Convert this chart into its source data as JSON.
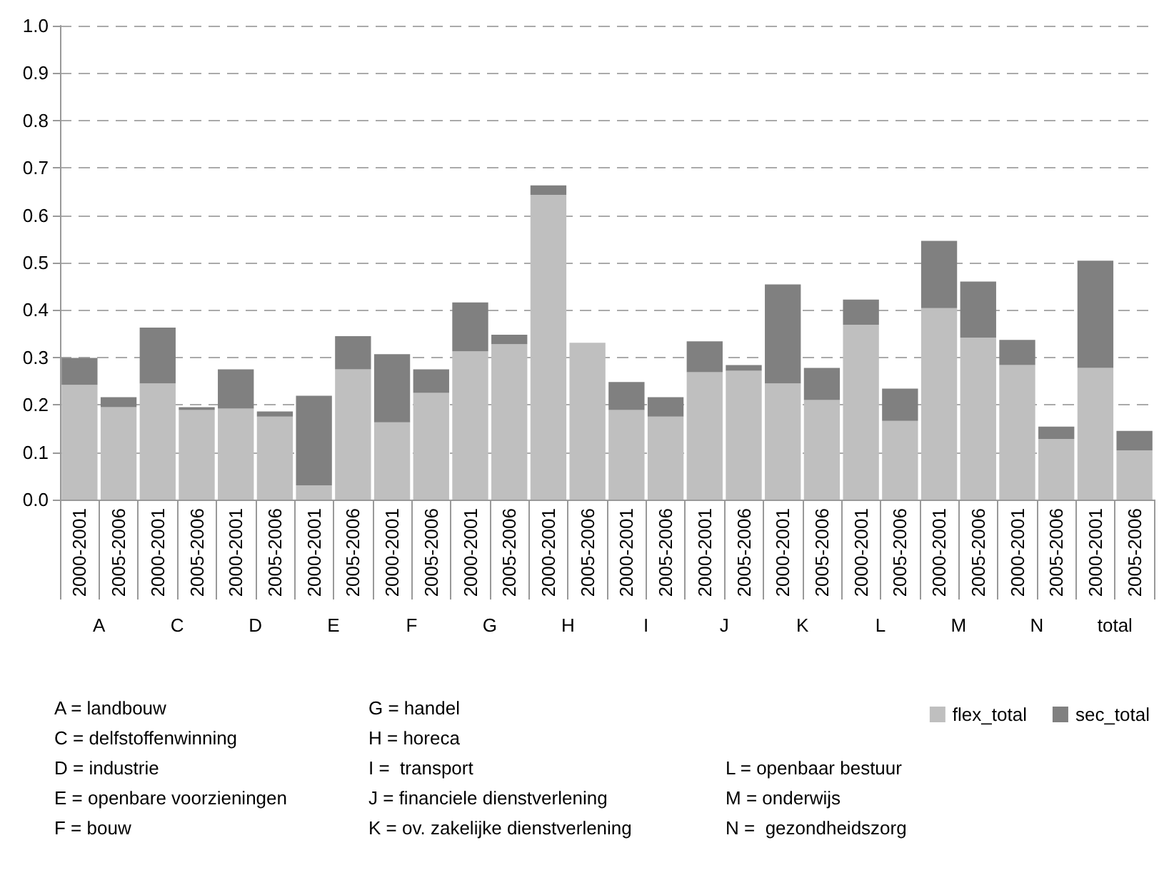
{
  "chart_data": {
    "type": "bar",
    "stacked": true,
    "categories": [
      "2000-2001",
      "2005-2006",
      "2000-2001",
      "2005-2006",
      "2000-2001",
      "2005-2006",
      "2000-2001",
      "2005-2006",
      "2000-2001",
      "2005-2006",
      "2000-2001",
      "2005-2006",
      "2000-2001",
      "2005-2006",
      "2000-2001",
      "2005-2006",
      "2000-2001",
      "2005-2006",
      "2000-2001",
      "2005-2006",
      "2000-2001",
      "2005-2006",
      "2000-2001",
      "2005-2006",
      "2000-2001",
      "2005-2006",
      "2000-2001",
      "2005-2006"
    ],
    "series": [
      {
        "name": "flex_total",
        "color": "#bfbfbf",
        "values": [
          0.242,
          0.195,
          0.245,
          0.189,
          0.192,
          0.175,
          0.03,
          0.275,
          0.163,
          0.225,
          0.313,
          0.328,
          0.643,
          0.331,
          0.189,
          0.175,
          0.269,
          0.272,
          0.245,
          0.21,
          0.369,
          0.166,
          0.404,
          0.342,
          0.284,
          0.128,
          0.278,
          0.104
        ]
      },
      {
        "name": "sec_total",
        "color": "#808080",
        "values": [
          0.057,
          0.021,
          0.118,
          0.006,
          0.083,
          0.011,
          0.189,
          0.07,
          0.144,
          0.05,
          0.103,
          0.02,
          0.02,
          null,
          0.059,
          0.041,
          0.065,
          0.012,
          0.209,
          0.068,
          0.053,
          0.068,
          0.142,
          0.118,
          0.053,
          0.026,
          0.226,
          0.041
        ]
      }
    ],
    "ylim": [
      0,
      1
    ],
    "yticks": [
      {
        "value": 0,
        "label": "0.0"
      },
      0.1,
      0.2,
      0.3,
      0.4,
      0.5,
      0.6,
      0.7,
      0.8,
      0.9,
      {
        "value": 1,
        "label": "1.0"
      }
    ],
    "grid": "y",
    "legend": "bottom right",
    "annotations": [
      "A",
      "C",
      "D",
      "E",
      "F",
      "G",
      "H",
      "I",
      "J",
      "K",
      "L",
      "M",
      "N",
      "total",
      "A = landbouw",
      "C = delfstoffenwinning",
      "D = industrie",
      "E = openbare voorzieningen",
      "F = bouw",
      "G = handel",
      "H = horeca",
      "I =  transport",
      "J = financiele dienstverlening",
      "K = ov. zakelijke dienstverlening",
      "L = openbaar bestuur",
      "M = onderwijs",
      "N =  gezondheidszorg"
    ]
  }
}
